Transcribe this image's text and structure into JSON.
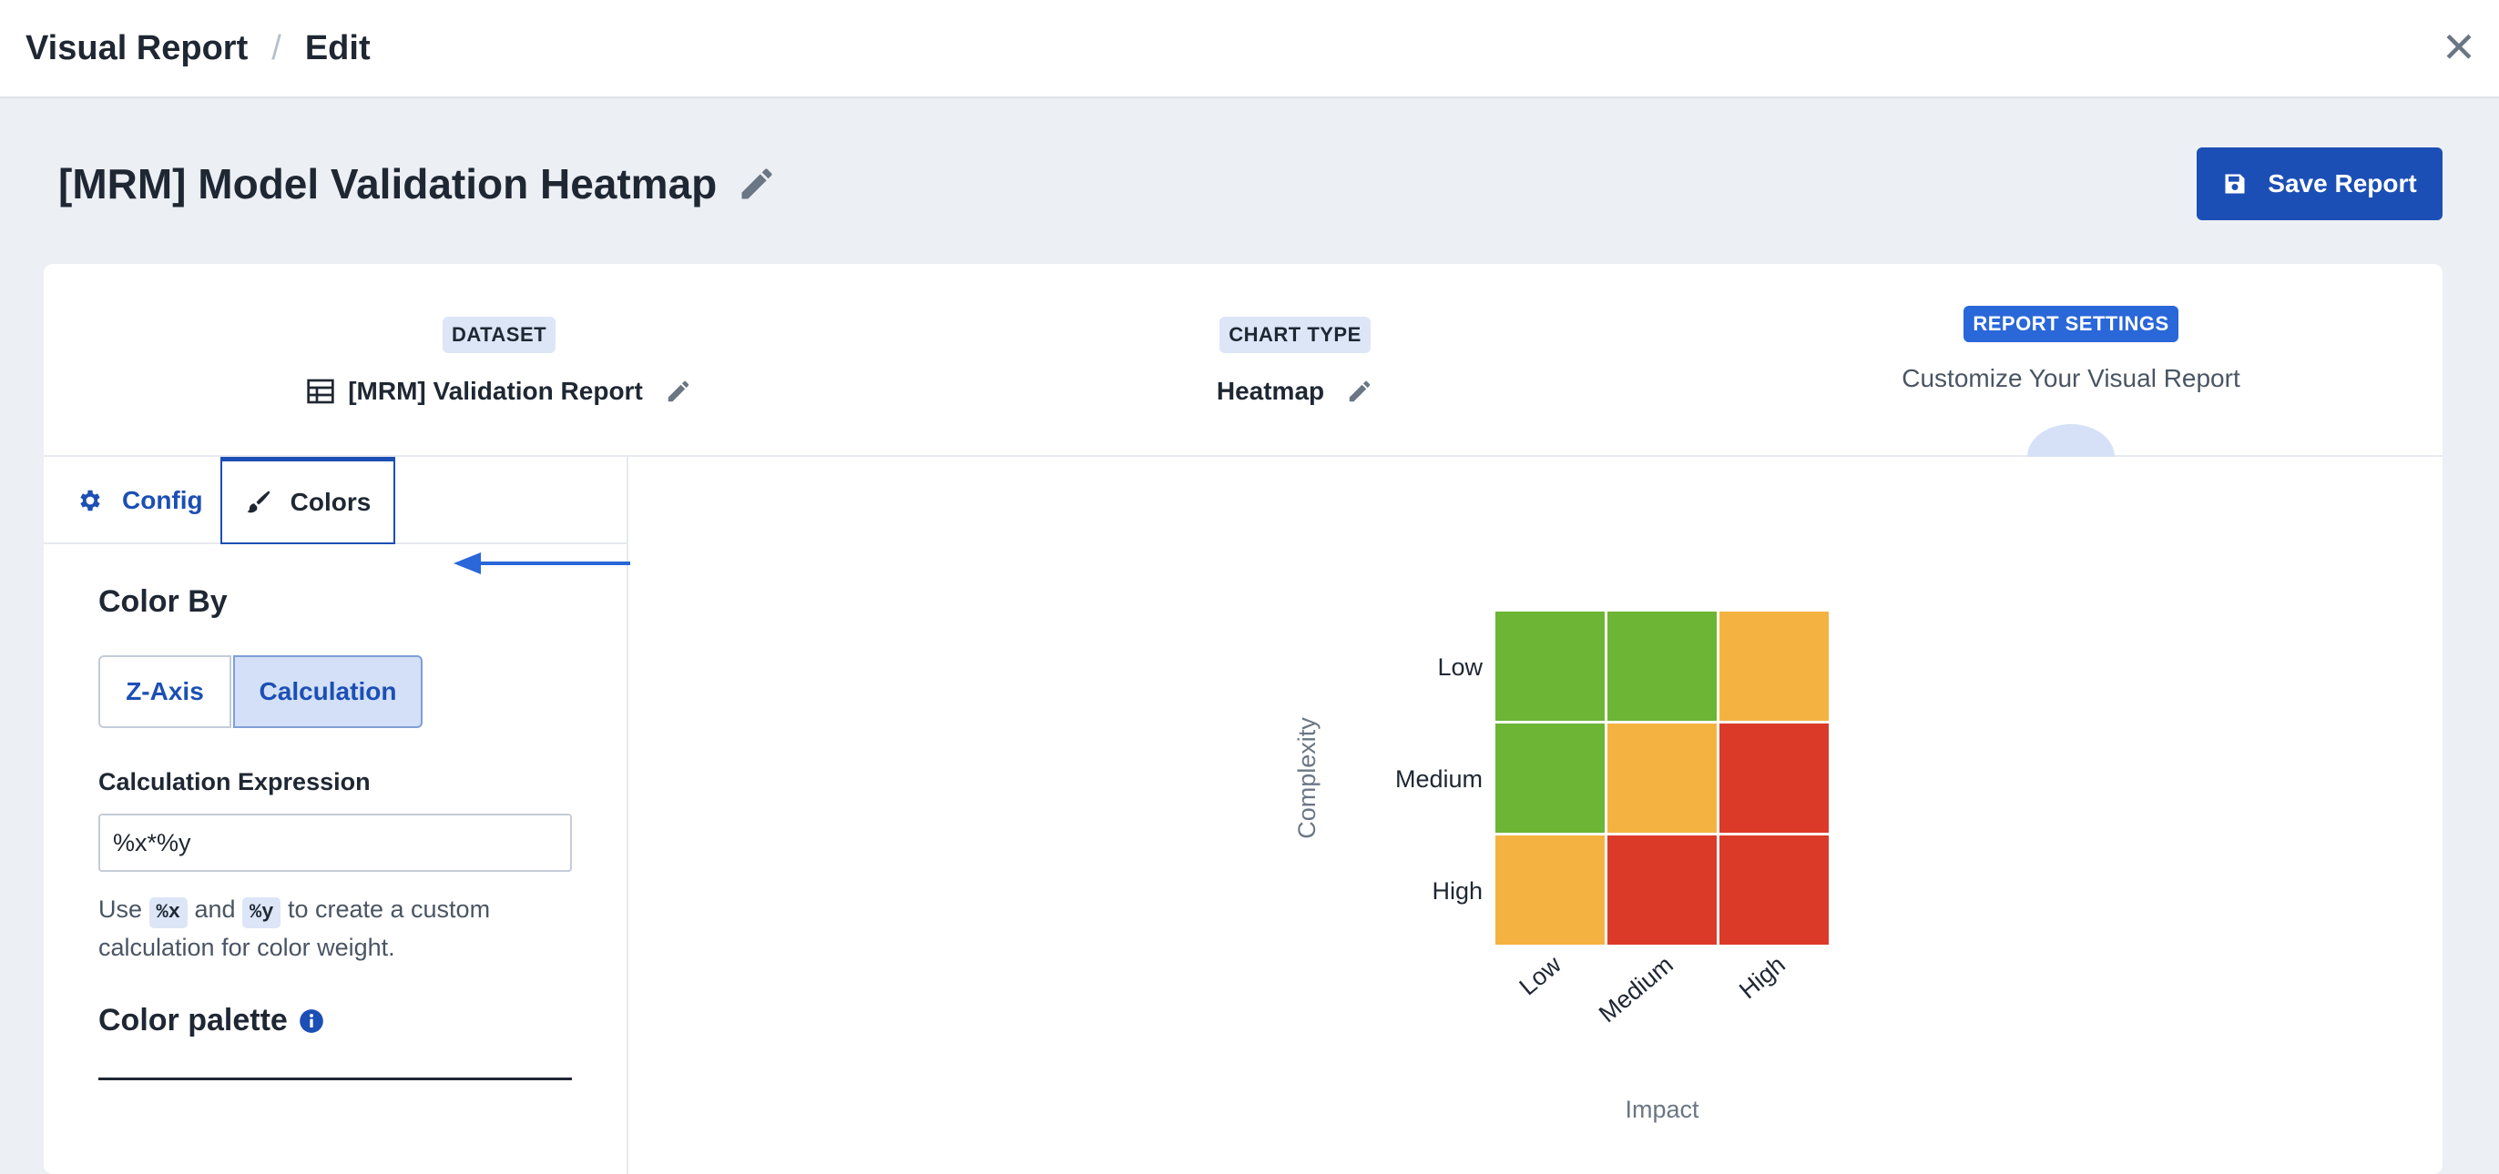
{
  "header": {
    "breadcrumb_root": "Visual Report",
    "breadcrumb_separator": "/",
    "breadcrumb_current": "Edit",
    "close_icon": "close-icon"
  },
  "report": {
    "title": "[MRM] Model Validation Heatmap",
    "save_label": "Save Report"
  },
  "steps": {
    "dataset": {
      "badge": "DATASET",
      "value": "[MRM] Validation Report"
    },
    "chart_type": {
      "badge": "CHART TYPE",
      "value": "Heatmap"
    },
    "report_settings": {
      "badge": "REPORT SETTINGS",
      "subtitle": "Customize Your Visual Report"
    }
  },
  "tabs": {
    "config_label": "Config",
    "colors_label": "Colors"
  },
  "colors_panel": {
    "color_by_title": "Color By",
    "zaxis_label": "Z-Axis",
    "calculation_label": "Calculation",
    "expression_label": "Calculation Expression",
    "expression_value": "%x*%y",
    "help_prefix": "Use",
    "help_chip_x": "%x",
    "help_and": "and",
    "help_chip_y": "%y",
    "help_suffix": "to create a custom calculation for color weight.",
    "palette_title": "Color palette"
  },
  "colors": {
    "accent": "#1c4fb5",
    "green": "#6db535",
    "amber": "#f4b341",
    "red": "#dc3a28"
  },
  "chart_data": {
    "type": "heatmap",
    "xlabel": "Impact",
    "ylabel": "Complexity",
    "x_categories": [
      "Low",
      "Medium",
      "High"
    ],
    "y_categories": [
      "Low",
      "Medium",
      "High"
    ],
    "cell_colors": [
      [
        "#6db535",
        "#6db535",
        "#f4b341"
      ],
      [
        "#6db535",
        "#f4b341",
        "#dc3a28"
      ],
      [
        "#f4b341",
        "#dc3a28",
        "#dc3a28"
      ]
    ]
  }
}
